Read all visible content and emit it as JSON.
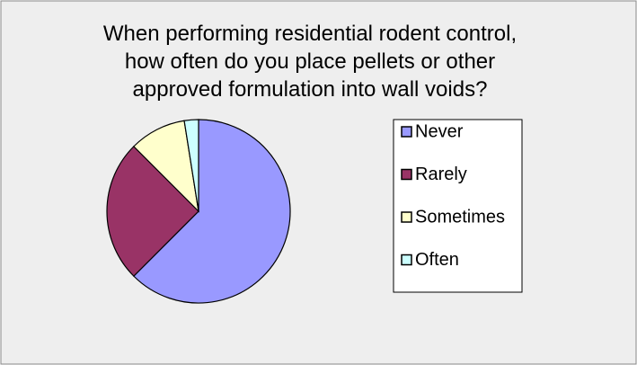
{
  "chart_data": {
    "type": "pie",
    "title": "When performing residential rodent control,\nhow often do you place pellets or other\napproved formulation into wall voids?",
    "categories": [
      "Never",
      "Rarely",
      "Sometimes",
      "Often"
    ],
    "values": [
      62.5,
      25,
      10,
      2.5
    ],
    "colors": [
      "#9999ff",
      "#993366",
      "#ffffcc",
      "#ccffff"
    ],
    "legend": "right"
  }
}
